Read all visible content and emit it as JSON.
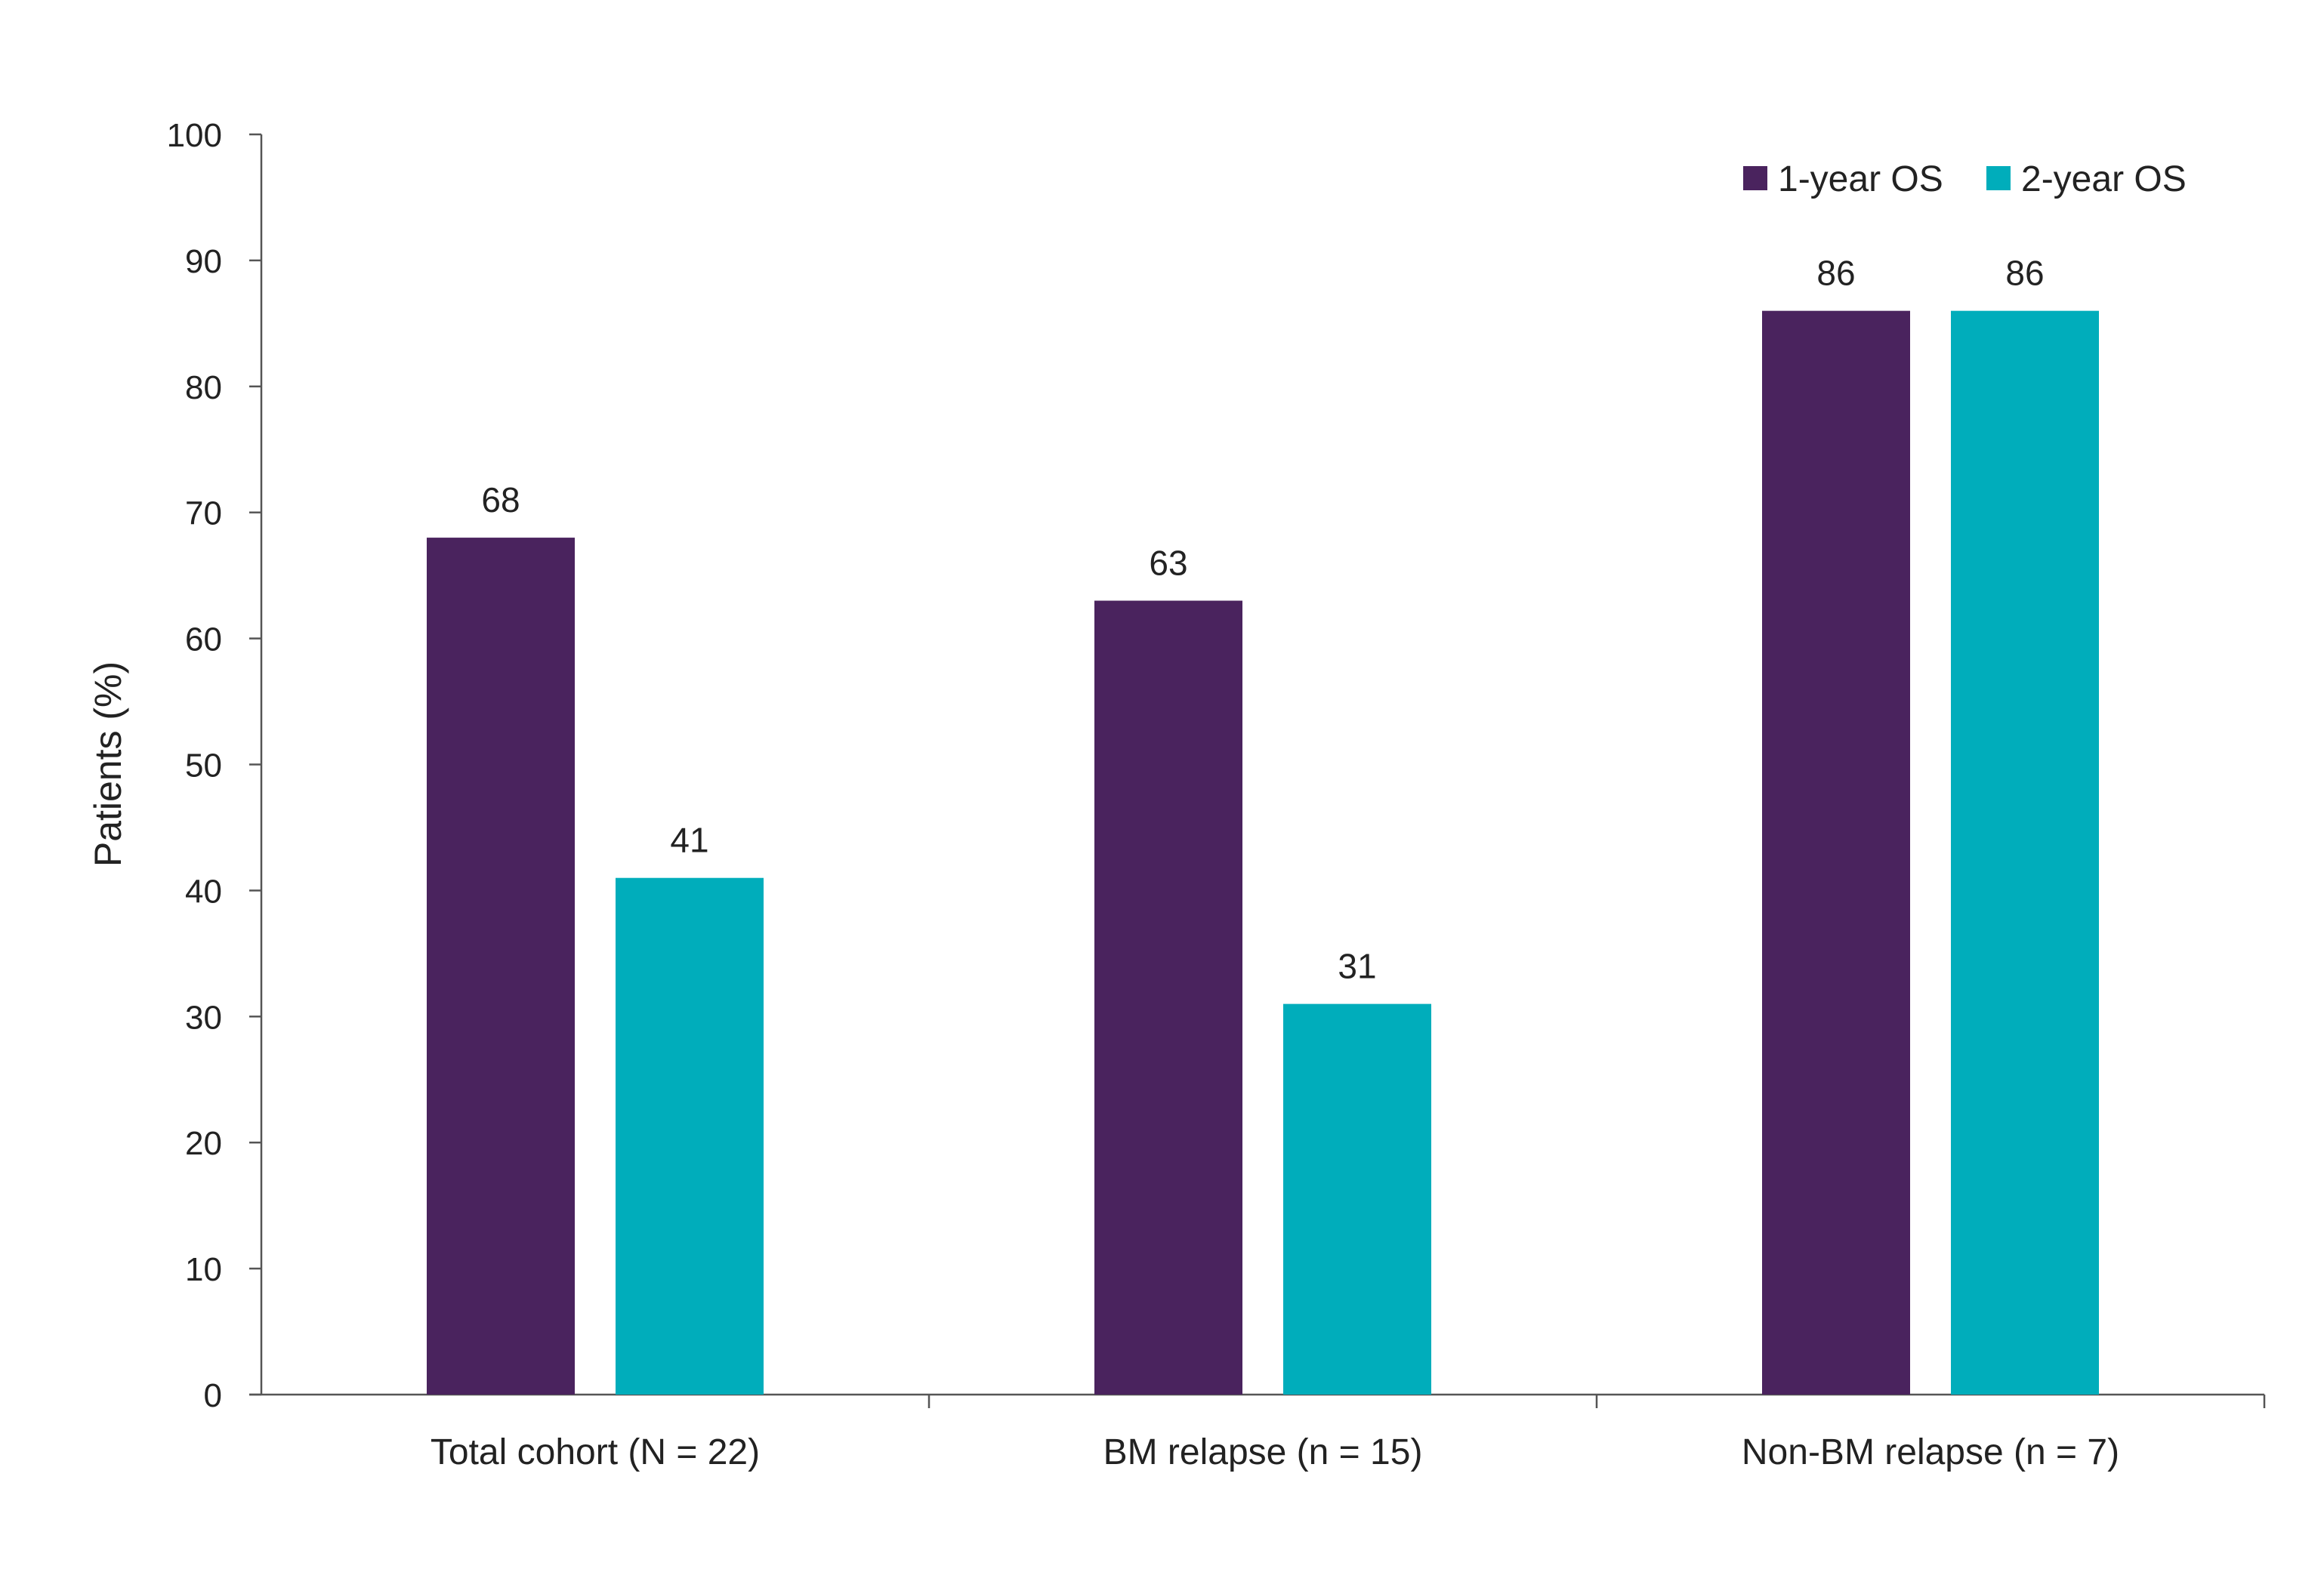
{
  "chart_data": {
    "type": "bar",
    "title": "",
    "xlabel": "",
    "ylabel": "Patients (%)",
    "ylim": [
      0,
      100
    ],
    "yticks": [
      0,
      10,
      20,
      30,
      40,
      50,
      60,
      70,
      80,
      90,
      100
    ],
    "categories": [
      "Total cohort (N = 22)",
      "BM relapse (n = 15)",
      "Non-BM relapse (n = 7)"
    ],
    "series": [
      {
        "name": "1-year OS",
        "color": "#4a235e",
        "values": [
          68,
          63,
          86
        ]
      },
      {
        "name": "2-year OS",
        "color": "#00adbb",
        "values": [
          41,
          31,
          86
        ]
      }
    ],
    "legend": "top-right",
    "grid": false,
    "data_labels": true
  }
}
